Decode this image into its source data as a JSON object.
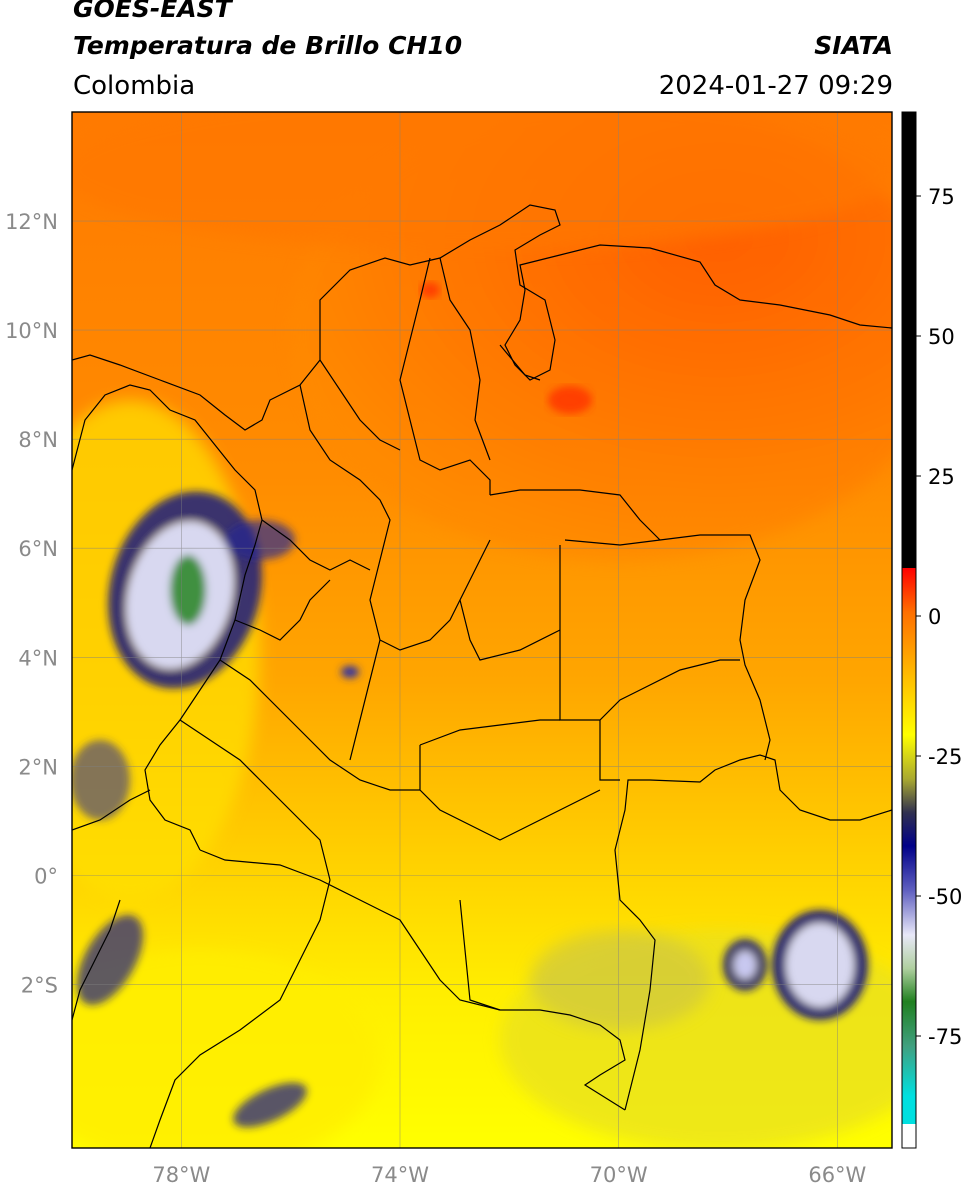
{
  "header": {
    "satellite": "GOES-EAST",
    "product": "Temperatura de Brillo CH10",
    "organization": "SIATA",
    "region": "Colombia",
    "timestamp": "2024-01-27 09:29"
  },
  "map": {
    "extent": {
      "lon_min": -80,
      "lon_max": -65,
      "lat_min": -5,
      "lat_max": 14
    },
    "lon_ticks": [
      {
        "value": -78,
        "label": "78°W"
      },
      {
        "value": -74,
        "label": "74°W"
      },
      {
        "value": -70,
        "label": "70°W"
      },
      {
        "value": -66,
        "label": "66°W"
      }
    ],
    "lat_ticks": [
      {
        "value": 12,
        "label": "12°N"
      },
      {
        "value": 10,
        "label": "10°N"
      },
      {
        "value": 8,
        "label": "8°N"
      },
      {
        "value": 6,
        "label": "6°N"
      },
      {
        "value": 4,
        "label": "4°N"
      },
      {
        "value": 2,
        "label": "2°N"
      },
      {
        "value": 0,
        "label": "0°"
      },
      {
        "value": -2,
        "label": "2°S"
      }
    ],
    "gridlines": true,
    "colors": {
      "warm": "#ff6a00",
      "mid": "#ffa000",
      "cool": "#ffff00"
    }
  },
  "colorbar": {
    "range": [
      -95,
      90
    ],
    "ticks": [
      {
        "value": 75,
        "label": "75"
      },
      {
        "value": 50,
        "label": "50"
      },
      {
        "value": 25,
        "label": "25"
      },
      {
        "value": 0,
        "label": "0"
      },
      {
        "value": -25,
        "label": "-25"
      },
      {
        "value": -50,
        "label": "-50"
      },
      {
        "value": -75,
        "label": "-75"
      }
    ]
  }
}
